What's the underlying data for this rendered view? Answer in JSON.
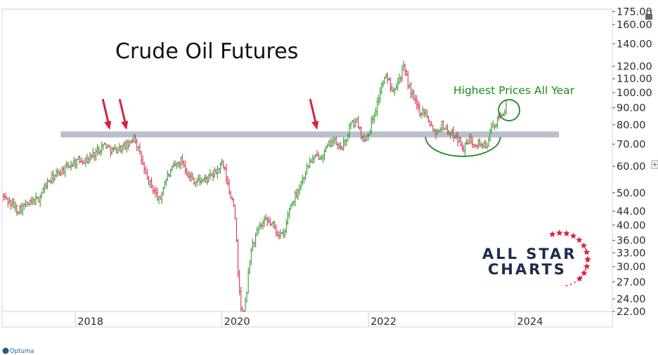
{
  "chart_data": {
    "type": "candlestick",
    "title": "Crude Oil Futures",
    "yscale": "log",
    "ylim": [
      22,
      178
    ],
    "xlim": [
      2017.0,
      2025.3
    ],
    "y_ticks": [
      {
        "value": 175,
        "label": "175.00"
      },
      {
        "value": 160,
        "label": "160.00"
      },
      {
        "value": 140,
        "label": "140.00"
      },
      {
        "value": 120,
        "label": "120.00"
      },
      {
        "value": 110,
        "label": "110.00"
      },
      {
        "value": 100,
        "label": "100.00"
      },
      {
        "value": 90,
        "label": "90.00"
      },
      {
        "value": 80,
        "label": "80.00"
      },
      {
        "value": 70,
        "label": "70.00"
      },
      {
        "value": 60,
        "label": "60.00"
      },
      {
        "value": 50,
        "label": "50.00"
      },
      {
        "value": 44,
        "label": "44.00"
      },
      {
        "value": 40,
        "label": "40.00"
      },
      {
        "value": 36,
        "label": "36.00"
      },
      {
        "value": 33,
        "label": "33.00"
      },
      {
        "value": 30,
        "label": "30.00"
      },
      {
        "value": 27,
        "label": "27.00"
      },
      {
        "value": 24,
        "label": "24.00"
      },
      {
        "value": 22,
        "label": "22.00"
      }
    ],
    "x_ticks": [
      {
        "value": 2018,
        "label": "2018"
      },
      {
        "value": 2020,
        "label": "2020"
      },
      {
        "value": 2022,
        "label": "2022"
      },
      {
        "value": 2024,
        "label": "2024"
      }
    ],
    "price_path": [
      [
        2017.0,
        49
      ],
      [
        2017.1,
        47
      ],
      [
        2017.2,
        44.5
      ],
      [
        2017.35,
        46
      ],
      [
        2017.5,
        48
      ],
      [
        2017.6,
        53
      ],
      [
        2017.75,
        57
      ],
      [
        2017.9,
        60
      ],
      [
        2018.05,
        63
      ],
      [
        2018.15,
        62.5
      ],
      [
        2018.3,
        67
      ],
      [
        2018.4,
        70
      ],
      [
        2018.5,
        67
      ],
      [
        2018.6,
        68
      ],
      [
        2018.75,
        70
      ],
      [
        2018.8,
        74.5
      ],
      [
        2018.9,
        63
      ],
      [
        2018.97,
        55
      ],
      [
        2019.05,
        52
      ],
      [
        2019.15,
        47
      ],
      [
        2019.22,
        54
      ],
      [
        2019.35,
        60
      ],
      [
        2019.45,
        63
      ],
      [
        2019.55,
        56
      ],
      [
        2019.65,
        54
      ],
      [
        2019.8,
        55
      ],
      [
        2019.9,
        57
      ],
      [
        2020.0,
        61
      ],
      [
        2020.05,
        57
      ],
      [
        2020.1,
        50
      ],
      [
        2020.17,
        46
      ],
      [
        2020.22,
        28
      ],
      [
        2020.28,
        20
      ],
      [
        2020.33,
        24
      ],
      [
        2020.4,
        34
      ],
      [
        2020.5,
        39
      ],
      [
        2020.6,
        41
      ],
      [
        2020.7,
        40
      ],
      [
        2020.75,
        38
      ],
      [
        2020.85,
        37
      ],
      [
        2020.92,
        45
      ],
      [
        2021.0,
        49
      ],
      [
        2021.1,
        55
      ],
      [
        2021.2,
        62
      ],
      [
        2021.3,
        64
      ],
      [
        2021.4,
        66
      ],
      [
        2021.5,
        72
      ],
      [
        2021.55,
        71
      ],
      [
        2021.6,
        68
      ],
      [
        2021.68,
        70
      ],
      [
        2021.75,
        80
      ],
      [
        2021.85,
        82
      ],
      [
        2021.93,
        71
      ],
      [
        2022.0,
        76
      ],
      [
        2022.1,
        89
      ],
      [
        2022.18,
        105
      ],
      [
        2022.25,
        112
      ],
      [
        2022.33,
        102
      ],
      [
        2022.42,
        110
      ],
      [
        2022.48,
        118
      ],
      [
        2022.55,
        105
      ],
      [
        2022.62,
        95
      ],
      [
        2022.7,
        88
      ],
      [
        2022.78,
        88
      ],
      [
        2022.85,
        80
      ],
      [
        2022.92,
        76
      ],
      [
        2023.0,
        80
      ],
      [
        2023.1,
        76
      ],
      [
        2023.2,
        74
      ],
      [
        2023.3,
        68
      ],
      [
        2023.38,
        72
      ],
      [
        2023.45,
        71
      ],
      [
        2023.55,
        70
      ],
      [
        2023.6,
        68
      ],
      [
        2023.68,
        78
      ],
      [
        2023.75,
        82
      ],
      [
        2023.82,
        86
      ],
      [
        2023.88,
        90
      ]
    ],
    "candle_colors": {
      "up": "#2e9e2e",
      "down": "#d9304f"
    },
    "resistance_band": {
      "low": 73.3,
      "high": 76.4,
      "x_start": 2017.8,
      "x_end": 2024.6,
      "color": "#b9c0cc"
    },
    "annotations": [
      {
        "type": "arrow",
        "x": 2018.47,
        "y": 75,
        "color": "#d8223d"
      },
      {
        "type": "arrow",
        "x": 2018.7,
        "y": 75,
        "color": "#d8223d"
      },
      {
        "type": "arrow",
        "x": 2021.3,
        "y": 75,
        "color": "#d8223d"
      },
      {
        "type": "circle",
        "x": 2023.92,
        "y": 88.5,
        "color": "#1f8a1f"
      },
      {
        "type": "arc",
        "x_start": 2022.78,
        "x_end": 2023.8,
        "y_top": 75,
        "color": "#1f8a1f"
      },
      {
        "type": "text",
        "text": "Highest Prices All Year",
        "color": "#1a8a1a"
      }
    ]
  },
  "logo": {
    "line1": "ALL STAR",
    "line2": "CHARTS",
    "text_color": "#1d2b4f",
    "star_color": "#d8223d"
  },
  "vendor_label": "Optuma",
  "lock_icon": "lock-icon"
}
